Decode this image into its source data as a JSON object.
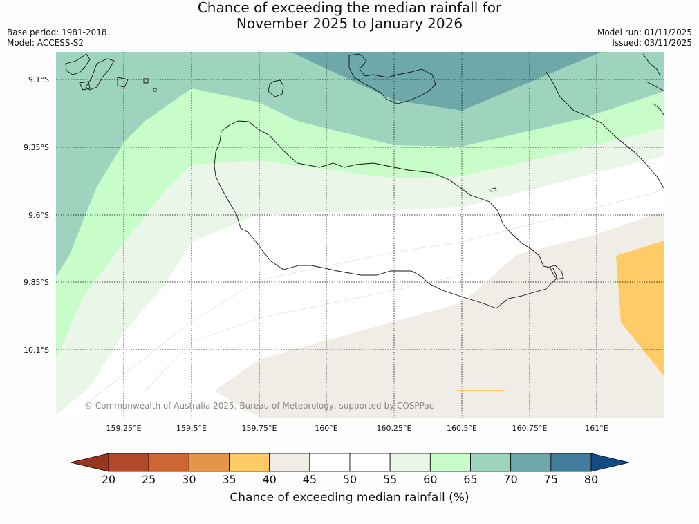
{
  "title_line1": "Chance of exceeding the median rainfall for",
  "title_line2": "November 2025 to January 2026",
  "base_period": "Base period: 1981-2018",
  "model": "Model: ACCESS-S2",
  "model_run": "Model run: 01/11/2025",
  "issued": "Issued: 03/11/2025",
  "copyright": "© Commonwealth of Australia 2025, Bureau of Meteorology, supported by COSPPac",
  "lat_labels": [
    "9.1°S",
    "9.35°S",
    "9.6°S",
    "9.85°S",
    "10.1°S"
  ],
  "lon_labels": [
    "159.25°E",
    "159.5°E",
    "159.75°E",
    "160°E",
    "160.25°E",
    "160.5°E",
    "160.75°E",
    "161°E"
  ],
  "colorbar": {
    "title": "Chance of exceeding median rainfall (%)",
    "ticks": [
      "20",
      "25",
      "30",
      "35",
      "40",
      "45",
      "50",
      "55",
      "60",
      "65",
      "70",
      "75",
      "80"
    ],
    "colors": [
      "#b2492a",
      "#cd6534",
      "#e39548",
      "#fecb67",
      "#f0ece6",
      "#ffffff",
      "#ffffff",
      "#eaf6e8",
      "#c8fcc8",
      "#9ed3bd",
      "#6fa8a8",
      "#437c9b"
    ],
    "under_color": "#97361e",
    "over_color": "#134c84"
  },
  "colors": {
    "band_70_75": "#6fa8a8",
    "band_65_70": "#9ed3bd",
    "band_60_65": "#c8fcc8",
    "band_55_60": "#eaf6e8",
    "band_45_55": "#ffffff",
    "band_40_45": "#f0ece6",
    "band_35_40": "#fecb67"
  }
}
